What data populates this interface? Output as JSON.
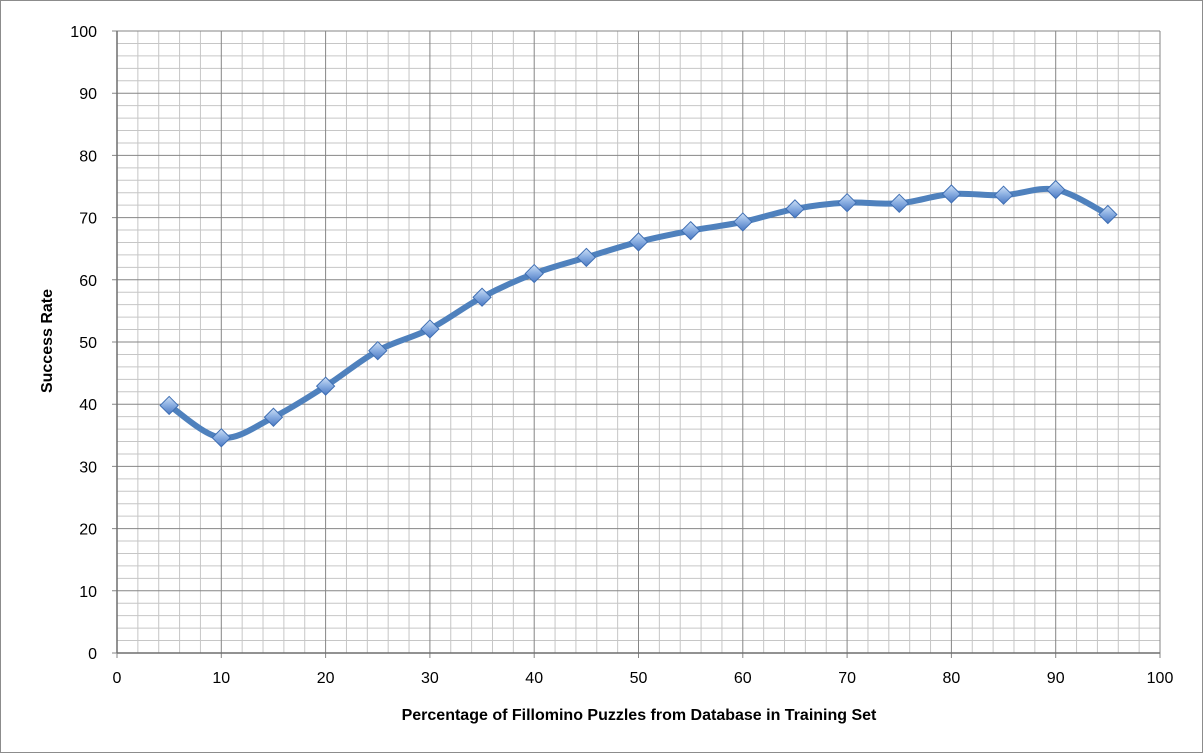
{
  "chart_data": {
    "type": "line",
    "title": "",
    "xlabel": "Percentage of Fillomino Puzzles from Database in Training Set",
    "ylabel": "Success Rate",
    "xlim": [
      0,
      100
    ],
    "ylim": [
      0,
      100
    ],
    "x_major_step": 10,
    "y_major_step": 10,
    "x_minor_step": 2,
    "y_minor_step": 2,
    "x_ticks": [
      "0",
      "10",
      "20",
      "30",
      "40",
      "50",
      "60",
      "70",
      "80",
      "90",
      "100"
    ],
    "y_ticks": [
      "0",
      "10",
      "20",
      "30",
      "40",
      "50",
      "60",
      "70",
      "80",
      "90",
      "100"
    ],
    "grid": true,
    "legend": "none",
    "marker": "diamond",
    "smooth": true,
    "series": [
      {
        "color": "#4f81bd",
        "x": [
          5,
          10,
          15,
          20,
          25,
          30,
          35,
          40,
          45,
          50,
          55,
          60,
          65,
          70,
          75,
          80,
          85,
          90,
          95
        ],
        "y": [
          39.8,
          34.6,
          37.9,
          42.9,
          48.6,
          52.1,
          57.2,
          61.0,
          63.6,
          66.1,
          67.9,
          69.3,
          71.4,
          72.4,
          72.3,
          73.8,
          73.6,
          74.5,
          70.5
        ]
      }
    ]
  }
}
